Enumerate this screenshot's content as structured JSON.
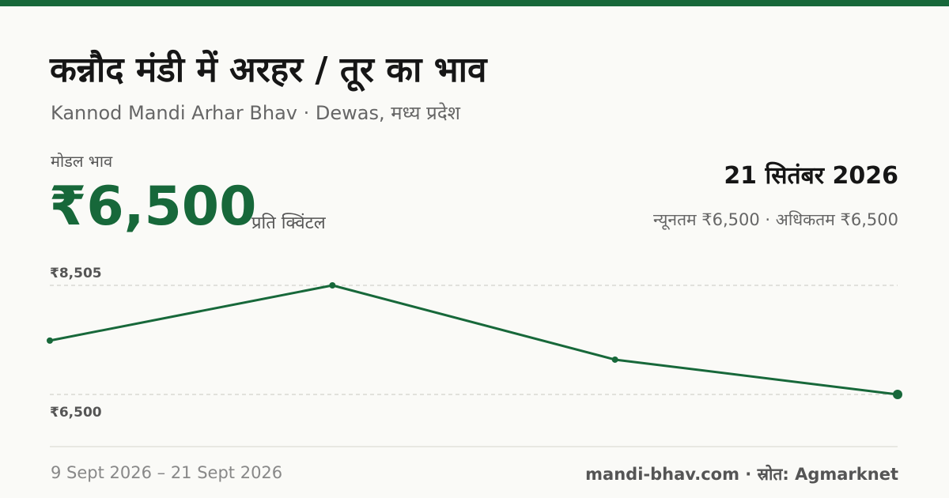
{
  "header": {
    "title": "कन्नौद मंडी में अरहर / तूर का भाव",
    "subtitle": "Kannod Mandi Arhar Bhav · Dewas, मध्य प्रदेश"
  },
  "price": {
    "label": "मोडल भाव",
    "value": "₹6,500",
    "unit": "प्रति क्विंटल",
    "date": "21 सितंबर 2026",
    "range": "न्यूनतम ₹6,500 · अधिकतम ₹6,500"
  },
  "chart": {
    "type": "line",
    "categories": [
      null,
      null,
      null,
      null
    ],
    "values": [
      7490,
      8505,
      7140,
      6500
    ],
    "color": "#17683a",
    "ylim": [
      6500,
      8505
    ],
    "yticks": [
      {
        "value": 8505,
        "label": "₹8,505"
      },
      {
        "value": 6500,
        "label": "₹6,500"
      }
    ],
    "grid": true
  },
  "footer": {
    "period": "9 Sept 2026 – 21 Sept 2026",
    "source": "mandi-bhav.com · स्रोत: Agmarknet"
  }
}
